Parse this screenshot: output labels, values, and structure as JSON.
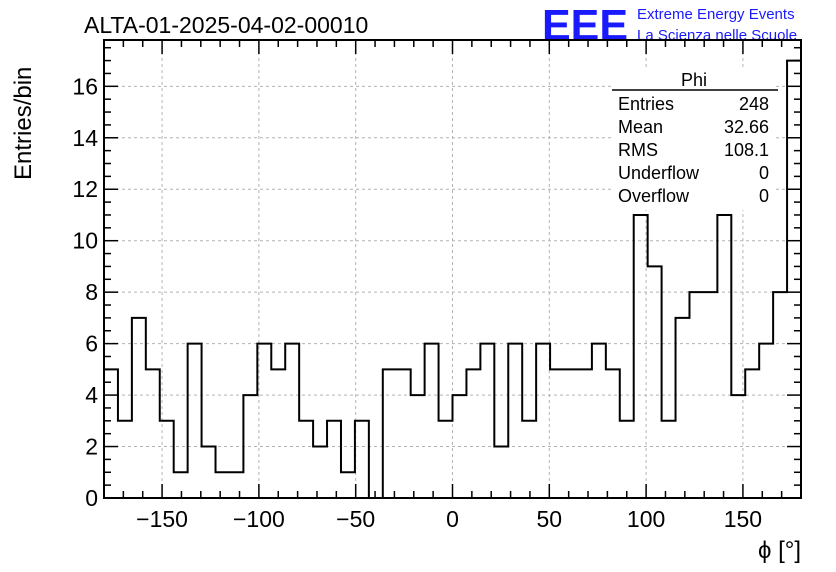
{
  "header": {
    "title": "ALTA-01-2025-04-02-00010",
    "logo_mark": "EEE",
    "logo_line1": "Extreme Energy Events",
    "logo_line2": "La Scienza nelle Scuole"
  },
  "colors": {
    "logo": "#1a1aff",
    "histogram": "#000000",
    "grid": "#b4b4b4"
  },
  "stats_box": {
    "title": "Phi",
    "rows": [
      {
        "label": "Entries",
        "value": "248"
      },
      {
        "label": "Mean",
        "value": "32.66"
      },
      {
        "label": "RMS",
        "value": "108.1"
      },
      {
        "label": "Underflow",
        "value": "0"
      },
      {
        "label": "Overflow",
        "value": "0"
      }
    ]
  },
  "chart_data": {
    "type": "bar",
    "title": "ALTA-01-2025-04-02-00010",
    "xlabel": "ϕ [°]",
    "ylabel": "Entries/bin",
    "xlim": [
      -180,
      180
    ],
    "ylim": [
      0,
      17.8
    ],
    "bin_width": 7.2,
    "grid": true,
    "legend": "top-right",
    "x_ticks": [
      -150,
      -100,
      -50,
      0,
      50,
      100,
      150
    ],
    "x_tick_labels": [
      "−150",
      "−100",
      "−50",
      "0",
      "50",
      "100",
      "150"
    ],
    "y_ticks": [
      0,
      2,
      4,
      6,
      8,
      10,
      12,
      14,
      16
    ],
    "y_tick_labels": [
      "0",
      "2",
      "4",
      "6",
      "8",
      "10",
      "12",
      "14",
      "16"
    ],
    "values": [
      5,
      3,
      7,
      5,
      3,
      1,
      6,
      2,
      1,
      1,
      4,
      6,
      5,
      6,
      3,
      2,
      3,
      1,
      3,
      0,
      5,
      5,
      4,
      6,
      3,
      4,
      5,
      6,
      2,
      6,
      3,
      6,
      5,
      5,
      5,
      6,
      5,
      3,
      11,
      9,
      3,
      7,
      8,
      8,
      11,
      4,
      5,
      6,
      8,
      17
    ]
  }
}
